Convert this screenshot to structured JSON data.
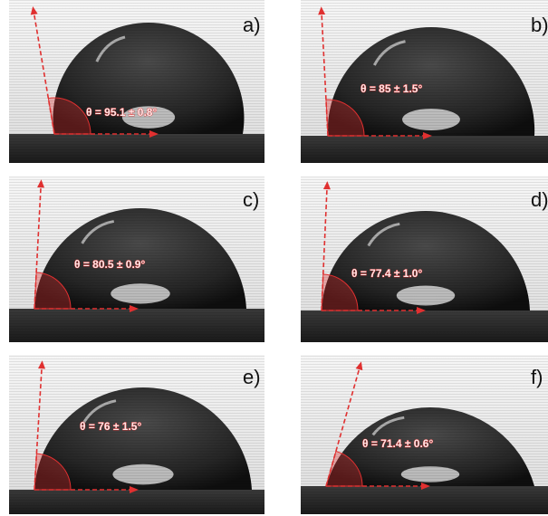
{
  "panels": [
    {
      "label": "a)",
      "angle": "θ = 95.1 ± 0.8°"
    },
    {
      "label": "b)",
      "angle": "θ = 85 ± 1.5°"
    },
    {
      "label": "c)",
      "angle": "θ = 80.5 ± 0.9°"
    },
    {
      "label": "d)",
      "angle": "θ = 77.4 ± 1.0°"
    },
    {
      "label": "e)",
      "angle": "θ = 76 ± 1.5°"
    },
    {
      "label": "f)",
      "angle": "θ = 71.4 ± 0.6°"
    }
  ]
}
